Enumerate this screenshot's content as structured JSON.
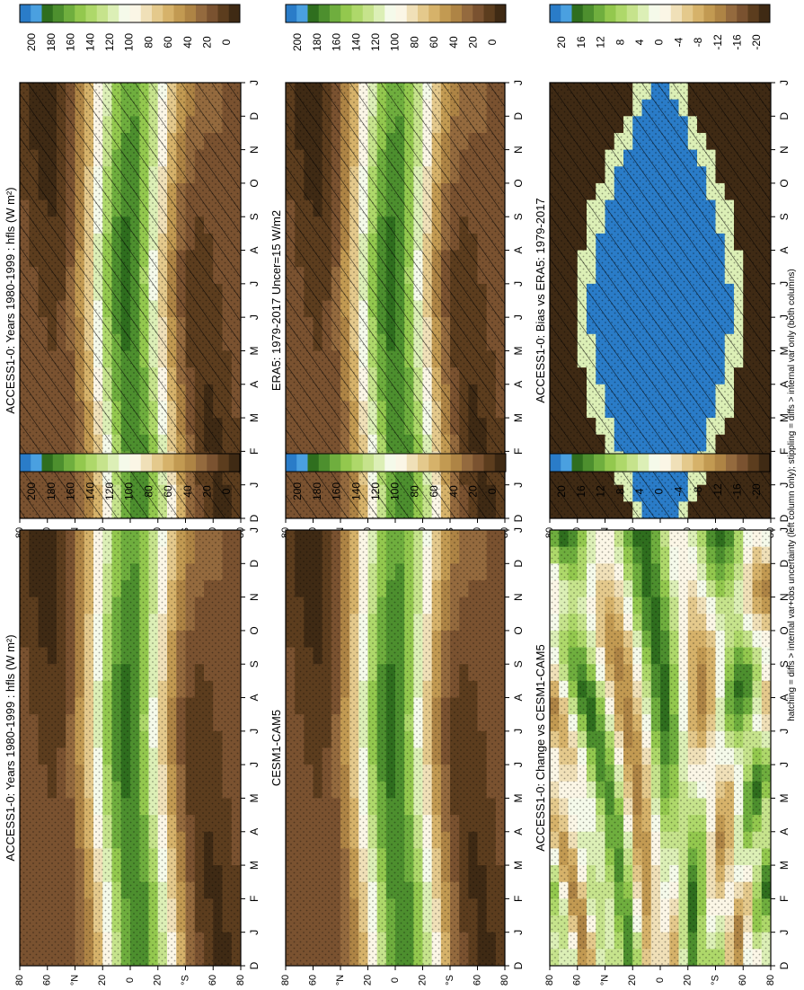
{
  "figure": {
    "footnote": "hatching = diffs > internal var+obs uncertainty (left column only); stippling = diffs > internal var only (both columns)"
  },
  "palettes": {
    "abs": [
      "#3f2a14",
      "#5c3d1e",
      "#7a5230",
      "#946a3e",
      "#ae8445",
      "#c29a52",
      "#d6b26a",
      "#e4c98c",
      "#f0e0b8",
      "#fbf6e6",
      "#f5faea",
      "#dcefb6",
      "#c6e38c",
      "#aed86a",
      "#93c84e",
      "#6fae3e",
      "#4d8f2e",
      "#2f6e1e",
      "#4aa0e0",
      "#2a7cc8"
    ],
    "diff": [
      "#3f2a14",
      "#5c3d1e",
      "#7a5230",
      "#946a3e",
      "#ae8445",
      "#c29a52",
      "#d6b26a",
      "#e4c98c",
      "#f0e0b8",
      "#fbf6e6",
      "#f5faea",
      "#dcefb6",
      "#c6e38c",
      "#aed86a",
      "#93c84e",
      "#6fae3e",
      "#4d8f2e",
      "#2f6e1e",
      "#4aa0e0",
      "#2a7cc8"
    ]
  },
  "colorbars": {
    "abs_ticks": [
      "200",
      "180",
      "160",
      "140",
      "120",
      "100",
      "80",
      "60",
      "40",
      "20",
      "0"
    ],
    "diff_ticks": [
      "20",
      "16",
      "12",
      "8",
      "4",
      "0",
      "-4",
      "-8",
      "-12",
      "-16",
      "-20"
    ]
  },
  "axes": {
    "months": [
      "D",
      "J",
      "F",
      "M",
      "A",
      "M",
      "J",
      "J",
      "A",
      "S",
      "O",
      "N",
      "D",
      "J"
    ],
    "latitudes": [
      "80",
      "60",
      "40",
      "20",
      "0",
      "20",
      "40",
      "60",
      "80"
    ],
    "lat_labels": [
      "80",
      "60",
      "°N",
      "20",
      "0",
      "20",
      "°S",
      "60",
      "80"
    ]
  },
  "chart_data": [
    {
      "type": "heatmap",
      "panel": "left-top",
      "title": "ACCESS1-0: Years 1980-1999 : hfls (W m²)",
      "x": "month",
      "y": "latitude",
      "z_range": [
        0,
        200
      ],
      "hatching": true,
      "stippling": true,
      "pattern": "seasonal",
      "values": [
        [
          10,
          15,
          20,
          35,
          70,
          110,
          140,
          150,
          140,
          110,
          70,
          35,
          20,
          15,
          10
        ],
        [
          10,
          15,
          20,
          40,
          80,
          120,
          145,
          155,
          145,
          120,
          80,
          40,
          20,
          15,
          10
        ],
        [
          10,
          15,
          25,
          45,
          85,
          125,
          150,
          155,
          145,
          120,
          75,
          35,
          20,
          15,
          10
        ],
        [
          10,
          20,
          30,
          50,
          90,
          130,
          150,
          150,
          140,
          110,
          65,
          30,
          15,
          10,
          10
        ]
      ]
    },
    {
      "type": "heatmap",
      "panel": "left-middle",
      "title": "ERA5: 1979-2017 Uncer=15 W/m2",
      "x": "month",
      "y": "latitude",
      "z_range": [
        0,
        200
      ],
      "hatching": true,
      "stippling": true,
      "pattern": "seasonal"
    },
    {
      "type": "heatmap",
      "panel": "left-bottom",
      "title": "ACCESS1-0: Bias vs ERA5: 1979-2017",
      "x": "month",
      "y": "latitude",
      "z_range": [
        -20,
        20
      ],
      "hatching": true,
      "stippling": true,
      "pattern": "bias"
    },
    {
      "type": "heatmap",
      "panel": "right-top",
      "title": "ACCESS1-0: Years 1980-1999 : hfls (W m²)",
      "x": "month",
      "y": "latitude",
      "z_range": [
        0,
        200
      ],
      "hatching": false,
      "stippling": true,
      "pattern": "seasonal"
    },
    {
      "type": "heatmap",
      "panel": "right-middle",
      "title": "CESM1-CAM5",
      "x": "month",
      "y": "latitude",
      "z_range": [
        0,
        200
      ],
      "hatching": false,
      "stippling": true,
      "pattern": "seasonal"
    },
    {
      "type": "heatmap",
      "panel": "right-bottom",
      "title": "ACCESS1-0: Change vs CESM1-CAM5",
      "x": "month",
      "y": "latitude",
      "z_range": [
        -20,
        20
      ],
      "hatching": false,
      "stippling": true,
      "pattern": "change"
    }
  ]
}
